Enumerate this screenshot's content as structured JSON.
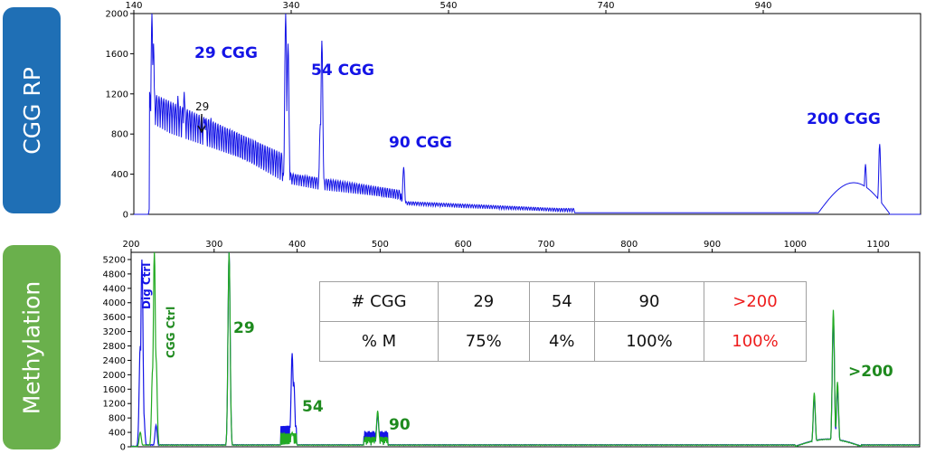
{
  "side_labels": {
    "top": "CGG RP",
    "bottom": "Methylation"
  },
  "colors": {
    "top_panel_bg": "#1f6fb5",
    "bottom_panel_bg": "#6ab04c",
    "trace_blue": "#1414e6",
    "trace_green": "#22aa22",
    "label_green": "#1e8a1e",
    "highlight_red": "#ee1c1c"
  },
  "chart_data": [
    {
      "type": "line",
      "title": "",
      "xlabel": "",
      "ylabel": "",
      "xlim": [
        140,
        1140
      ],
      "ylim": [
        0,
        2000
      ],
      "x_ticks": [
        "140",
        "340",
        "540",
        "740",
        "940"
      ],
      "y_ticks": [
        "0",
        "400",
        "800",
        "1200",
        "1600",
        "2000"
      ],
      "series": [
        {
          "color": "#1414e6",
          "peaks": [
            {
              "x": 163,
              "y": 2000
            },
            {
              "x": 165,
              "y": 1700
            },
            {
              "x": 196,
              "y": 1180
            },
            {
              "x": 204,
              "y": 1220
            },
            {
              "x": 230,
              "y": 950
            },
            {
              "x": 238,
              "y": 960
            },
            {
              "x": 333,
              "y": 2000
            },
            {
              "x": 336,
              "y": 1700
            },
            {
              "x": 377,
              "y": 900
            },
            {
              "x": 379,
              "y": 1730
            },
            {
              "x": 483,
              "y": 470
            },
            {
              "x": 1039,
              "y": 230
            },
            {
              "x": 1070,
              "y": 500
            },
            {
              "x": 1088,
              "y": 700
            }
          ]
        }
      ],
      "annotations": [
        {
          "text": "29 CGG",
          "color": "#1414e6"
        },
        {
          "text": "54 CGG",
          "color": "#1414e6"
        },
        {
          "text": "90 CGG",
          "color": "#1414e6"
        },
        {
          "text": "200 CGG",
          "color": "#1414e6"
        },
        {
          "text": "29",
          "color": "#111111"
        }
      ]
    },
    {
      "type": "line",
      "title": "",
      "xlabel": "",
      "ylabel": "",
      "xlim": [
        200,
        1150
      ],
      "ylim": [
        0,
        5400
      ],
      "x_ticks": [
        "200",
        "300",
        "400",
        "500",
        "600",
        "700",
        "800",
        "900",
        "1000",
        "1100"
      ],
      "y_ticks": [
        "0",
        "400",
        "800",
        "1200",
        "1600",
        "2000",
        "2400",
        "2800",
        "3200",
        "3600",
        "4000",
        "4400",
        "4800",
        "5200"
      ],
      "series": [
        {
          "color": "#1414e6",
          "peaks": [
            {
              "x": 211,
              "y": 2800
            },
            {
              "x": 213,
              "y": 5200
            },
            {
              "x": 215,
              "y": 1000
            },
            {
              "x": 230,
              "y": 600
            },
            {
              "x": 318,
              "y": 5400
            },
            {
              "x": 394,
              "y": 2600
            },
            {
              "x": 396,
              "y": 1800
            },
            {
              "x": 497,
              "y": 900
            },
            {
              "x": 1023,
              "y": 1400
            },
            {
              "x": 1046,
              "y": 3600
            },
            {
              "x": 1051,
              "y": 1600
            }
          ]
        },
        {
          "color": "#22aa22",
          "peaks": [
            {
              "x": 211,
              "y": 400
            },
            {
              "x": 226,
              "y": 2200
            },
            {
              "x": 228,
              "y": 5400
            },
            {
              "x": 230,
              "y": 2500
            },
            {
              "x": 318,
              "y": 5400
            },
            {
              "x": 394,
              "y": 400
            },
            {
              "x": 497,
              "y": 1000
            },
            {
              "x": 1023,
              "y": 1500
            },
            {
              "x": 1046,
              "y": 3800
            },
            {
              "x": 1051,
              "y": 1800
            }
          ]
        }
      ],
      "annotations": [
        {
          "text": "Dig Ctrl",
          "color": "#1414e6"
        },
        {
          "text": "CGG Ctrl",
          "color": "#1e8a1e"
        },
        {
          "text": "29",
          "color": "#1e8a1e"
        },
        {
          "text": "54",
          "color": "#1e8a1e"
        },
        {
          "text": "90",
          "color": "#1e8a1e"
        },
        {
          "text": ">200",
          "color": "#1e8a1e"
        }
      ]
    }
  ],
  "table": {
    "row1": {
      "label": "# CGG",
      "values": [
        "29",
        "54",
        "90",
        ">200"
      ]
    },
    "row2": {
      "label": "% M",
      "values": [
        "75%",
        "4%",
        "100%",
        "100%"
      ]
    }
  }
}
